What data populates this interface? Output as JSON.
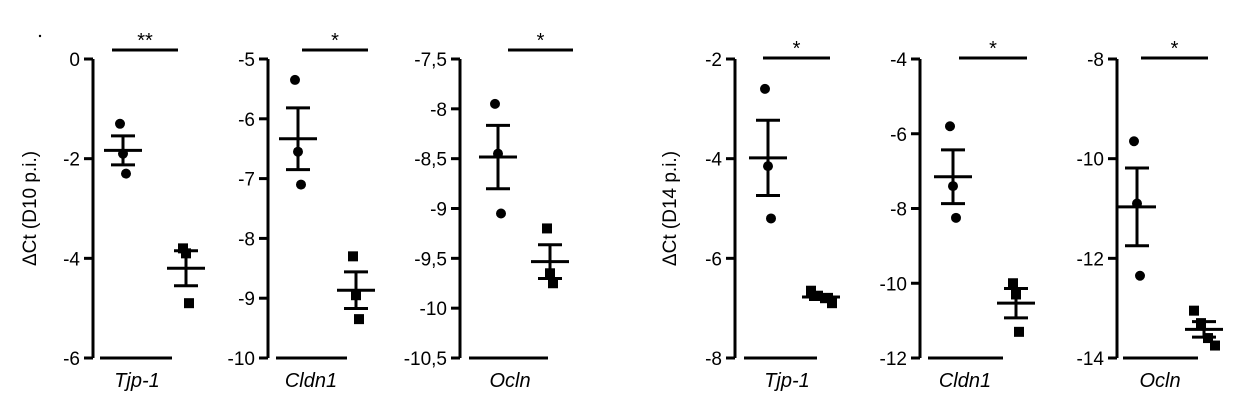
{
  "chart_data": [
    {
      "type": "scatter",
      "group": "D10",
      "ylabel": "ΔCt (D10 p.i.)",
      "gene": "Tjp-1",
      "ylim": [
        -6,
        0
      ],
      "yticks": [
        0,
        -2,
        -4,
        -6
      ],
      "ytick_labels": [
        "0",
        "-2",
        "-4",
        "-6"
      ],
      "significance": "**",
      "series": [
        {
          "marker": "circle",
          "values": [
            -1.3,
            -1.9,
            -2.3
          ]
        },
        {
          "marker": "square",
          "values": [
            -3.8,
            -3.9,
            -4.9
          ]
        }
      ]
    },
    {
      "type": "scatter",
      "group": "D10",
      "ylabel": "",
      "gene": "Cldn1",
      "ylim": [
        -10,
        -5
      ],
      "yticks": [
        -5,
        -6,
        -7,
        -8,
        -9,
        -10
      ],
      "ytick_labels": [
        "-5",
        "-6",
        "-7",
        "-8",
        "-9",
        "-10"
      ],
      "significance": "*",
      "series": [
        {
          "marker": "circle",
          "values": [
            -5.35,
            -6.55,
            -7.1
          ]
        },
        {
          "marker": "square",
          "values": [
            -8.3,
            -8.95,
            -9.35
          ]
        }
      ]
    },
    {
      "type": "scatter",
      "group": "D10",
      "ylabel": "",
      "gene": "Ocln",
      "ylim": [
        -10.5,
        -7.5
      ],
      "yticks": [
        -7.5,
        -8,
        -8.5,
        -9,
        -9.5,
        -10,
        -10.5
      ],
      "ytick_labels": [
        "-7,5",
        "-8",
        "-8,5",
        "-9",
        "-9,5",
        "-10",
        "-10,5"
      ],
      "significance": "*",
      "series": [
        {
          "marker": "circle",
          "values": [
            -7.95,
            -8.45,
            -9.05
          ]
        },
        {
          "marker": "square",
          "values": [
            -9.2,
            -9.65,
            -9.75
          ]
        }
      ]
    },
    {
      "type": "scatter",
      "group": "D14",
      "ylabel": "ΔCt (D14 p.i.)",
      "gene": "Tjp-1",
      "ylim": [
        -8,
        -2
      ],
      "yticks": [
        -2,
        -4,
        -6,
        -8
      ],
      "ytick_labels": [
        "-2",
        "-4",
        "-6",
        "-8"
      ],
      "significance": "*",
      "series": [
        {
          "marker": "circle",
          "values": [
            -2.6,
            -4.15,
            -5.2
          ]
        },
        {
          "marker": "square",
          "values": [
            -6.65,
            -6.75,
            -6.8,
            -6.9
          ]
        }
      ]
    },
    {
      "type": "scatter",
      "group": "D14",
      "ylabel": "",
      "gene": "Cldn1",
      "ylim": [
        -12,
        -4
      ],
      "yticks": [
        -4,
        -6,
        -8,
        -10,
        -12
      ],
      "ytick_labels": [
        "-4",
        "-6",
        "-8",
        "-10",
        "-12"
      ],
      "significance": "*",
      "series": [
        {
          "marker": "circle",
          "values": [
            -5.8,
            -7.4,
            -8.25
          ]
        },
        {
          "marker": "square",
          "values": [
            -10.0,
            -10.3,
            -11.3
          ]
        }
      ]
    },
    {
      "type": "scatter",
      "group": "D14",
      "ylabel": "",
      "gene": "Ocln",
      "ylim": [
        -14,
        -8
      ],
      "yticks": [
        -8,
        -10,
        -12,
        -14
      ],
      "ytick_labels": [
        "-8",
        "-10",
        "-12",
        "-14"
      ],
      "significance": "*",
      "series": [
        {
          "marker": "circle",
          "values": [
            -9.65,
            -10.9,
            -12.35
          ]
        },
        {
          "marker": "square",
          "values": [
            -13.05,
            -13.3,
            -13.6,
            -13.75
          ]
        }
      ]
    }
  ]
}
